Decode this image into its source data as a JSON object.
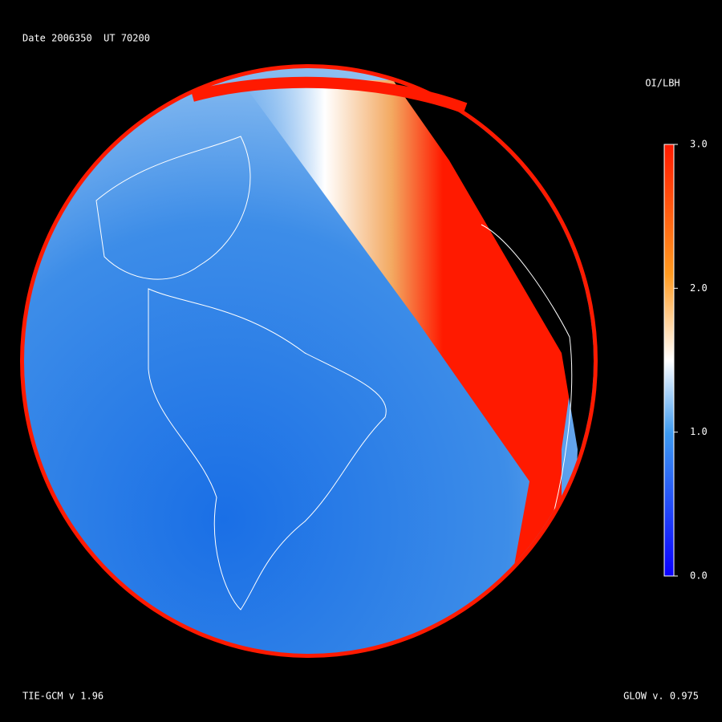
{
  "header": {
    "title": "Date 2006350  UT 70200"
  },
  "colorbar": {
    "title": "OI/LBH",
    "lim": [
      0,
      3
    ],
    "ticks": [
      {
        "value": 3,
        "label": "3.0"
      },
      {
        "value": 2,
        "label": "2.0"
      },
      {
        "value": 1,
        "label": "1.0"
      },
      {
        "value": 0,
        "label": "0.0"
      }
    ]
  },
  "footer": {
    "left": "TIE-GCM v 1.96",
    "right": "GLOW v. 0.975"
  }
}
